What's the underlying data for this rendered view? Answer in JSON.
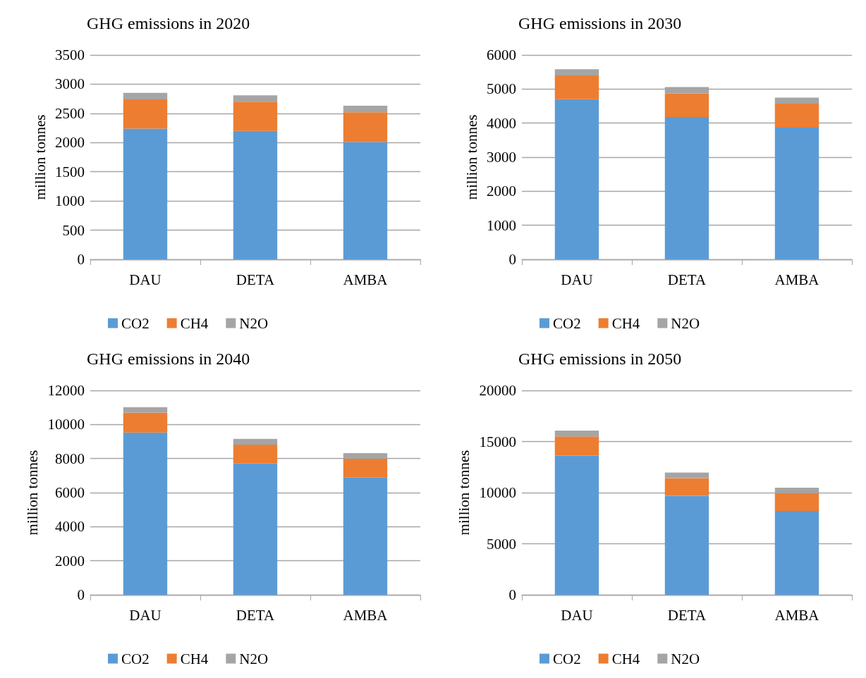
{
  "chart_data": [
    {
      "type": "bar",
      "title": "GHG emissions in 2020",
      "ylabel": "million tonnes",
      "categories": [
        "DAU",
        "DETA",
        "AMBA"
      ],
      "stacked": true,
      "ylim": [
        0,
        3500
      ],
      "yticks": [
        0,
        500,
        1000,
        1500,
        2000,
        2500,
        3000,
        3500
      ],
      "grid": "y",
      "legend": "bottom",
      "series": [
        {
          "name": "CO2",
          "color": "#5b9bd5",
          "values": [
            2240,
            2200,
            2010
          ]
        },
        {
          "name": "CH4",
          "color": "#ed7d31",
          "values": [
            500,
            500,
            510
          ]
        },
        {
          "name": "N2O",
          "color": "#a5a5a5",
          "values": [
            110,
            110,
            110
          ]
        }
      ]
    },
    {
      "type": "bar",
      "title": "GHG emissions in 2030",
      "ylabel": "million tonnes",
      "categories": [
        "DAU",
        "DETA",
        "AMBA"
      ],
      "stacked": true,
      "ylim": [
        0,
        6000
      ],
      "yticks": [
        0,
        1000,
        2000,
        3000,
        4000,
        5000,
        6000
      ],
      "grid": "y",
      "legend": "bottom",
      "series": [
        {
          "name": "CO2",
          "color": "#5b9bd5",
          "values": [
            4700,
            4180,
            3870
          ]
        },
        {
          "name": "CH4",
          "color": "#ed7d31",
          "values": [
            700,
            690,
            700
          ]
        },
        {
          "name": "N2O",
          "color": "#a5a5a5",
          "values": [
            180,
            190,
            180
          ]
        }
      ]
    },
    {
      "type": "bar",
      "title": "GHG emissions in 2040",
      "ylabel": "million tonnes",
      "categories": [
        "DAU",
        "DETA",
        "AMBA"
      ],
      "stacked": true,
      "ylim": [
        0,
        12000
      ],
      "yticks": [
        0,
        2000,
        4000,
        6000,
        8000,
        10000,
        12000
      ],
      "grid": "y",
      "legend": "bottom",
      "series": [
        {
          "name": "CO2",
          "color": "#5b9bd5",
          "values": [
            9530,
            7710,
            6880
          ]
        },
        {
          "name": "CH4",
          "color": "#ed7d31",
          "values": [
            1170,
            1100,
            1120
          ]
        },
        {
          "name": "N2O",
          "color": "#a5a5a5",
          "values": [
            320,
            350,
            320
          ]
        }
      ]
    },
    {
      "type": "bar",
      "title": "GHG emissions in 2050",
      "ylabel": "million tonnes",
      "categories": [
        "DAU",
        "DETA",
        "AMBA"
      ],
      "stacked": true,
      "ylim": [
        0,
        20000
      ],
      "yticks": [
        0,
        5000,
        10000,
        15000,
        20000
      ],
      "grid": "y",
      "legend": "bottom",
      "series": [
        {
          "name": "CO2",
          "color": "#5b9bd5",
          "values": [
            13620,
            9690,
            8210
          ]
        },
        {
          "name": "CH4",
          "color": "#ed7d31",
          "values": [
            1880,
            1720,
            1720
          ]
        },
        {
          "name": "N2O",
          "color": "#a5a5a5",
          "values": [
            570,
            550,
            550
          ]
        }
      ]
    }
  ]
}
